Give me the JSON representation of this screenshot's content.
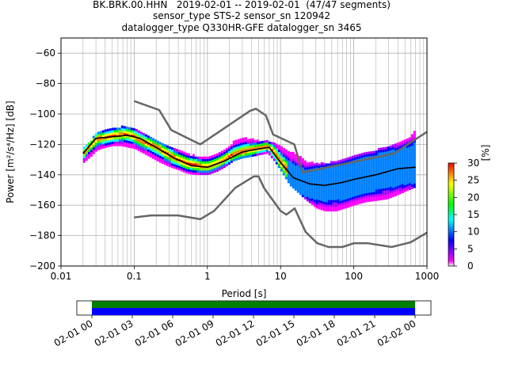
{
  "title_lines": [
    "BK.BRK.00.HHN   2019-02-01 -- 2019-02-01  (47/47 segments)",
    "sensor_type STS-2 sensor_sn 120942",
    "datalogger_type Q330HR-GFE datalogger_sn 3465"
  ],
  "chart_data": [
    {
      "type": "heatmap",
      "xlabel": "Period [s]",
      "ylabel": "Power [m²/s⁴/Hz] [dB]",
      "xscale": "log",
      "xlim": [
        0.01,
        1000
      ],
      "ylim": [
        -200,
        -50
      ],
      "xticks": [
        0.01,
        0.1,
        1,
        10,
        100,
        1000
      ],
      "xtick_labels": [
        "0.01",
        "0.1",
        "1",
        "10",
        "100",
        "1000"
      ],
      "yticks": [
        -200,
        -180,
        -160,
        -140,
        -120,
        -100,
        -80,
        -60
      ],
      "ytick_labels": [
        "−200",
        "−180",
        "−160",
        "−140",
        "−120",
        "−100",
        "−80",
        "−60"
      ],
      "grid": true,
      "colorbar": {
        "label": "[%]",
        "range": [
          0,
          30
        ],
        "ticks": [
          0,
          5,
          10,
          15,
          20,
          25,
          30
        ],
        "tick_labels": [
          "0",
          "5",
          "10",
          "15",
          "20",
          "25",
          "30"
        ],
        "colors": [
          "#ffffff",
          "#ff00ff",
          "#0000ff",
          "#00ffff",
          "#00ff00",
          "#ffff00",
          "#ff0000"
        ]
      },
      "series": [
        {
          "role": "mean",
          "color": "#000000",
          "x": [
            0.02,
            0.03,
            0.05,
            0.08,
            0.12,
            0.2,
            0.35,
            0.6,
            1.0,
            1.7,
            3.0,
            5.0,
            7.0,
            10,
            15,
            25,
            40,
            70,
            100,
            200,
            400,
            700
          ],
          "y": [
            -126,
            -116,
            -115,
            -114,
            -116,
            -122,
            -129,
            -134,
            -135,
            -131,
            -125,
            -123,
            -122,
            -132,
            -142,
            -146,
            -147,
            -145,
            -143,
            -140,
            -136,
            -135
          ]
        },
        {
          "role": "nhnm",
          "color": "#666666",
          "x": [
            0.1,
            0.22,
            0.32,
            0.8,
            3.8,
            4.6,
            6.3,
            7.9,
            15.4,
            20,
            354.8,
            1000
          ],
          "y": [
            -91.5,
            -97.4,
            -110.5,
            -120,
            -98,
            -96.5,
            -101,
            -113.5,
            -120,
            -138.5,
            -126,
            -111.7
          ]
        },
        {
          "role": "nlnm",
          "color": "#666666",
          "x": [
            0.1,
            0.17,
            0.4,
            0.8,
            1.24,
            2.4,
            4.3,
            5.0,
            6.0,
            10.0,
            12.0,
            15.6,
            21.9,
            31.6,
            45,
            70,
            101,
            154,
            328,
            600,
            1000
          ],
          "y": [
            -168,
            -166.7,
            -166.7,
            -169.2,
            -163.7,
            -148.6,
            -141.1,
            -141.1,
            -149,
            -163.8,
            -166.2,
            -162.1,
            -177.5,
            -185,
            -187.5,
            -187.5,
            -185,
            -185,
            -187.5,
            -184.4,
            -178
          ]
        }
      ],
      "density": [
        {
          "x": 0.02,
          "lo": -132,
          "hi": -122,
          "mode": -126
        },
        {
          "x": 0.025,
          "lo": -128,
          "hi": -118,
          "mode": -121
        },
        {
          "x": 0.03,
          "lo": -124,
          "hi": -112,
          "mode": -117
        },
        {
          "x": 0.04,
          "lo": -122,
          "hi": -111,
          "mode": -116
        },
        {
          "x": 0.05,
          "lo": -121,
          "hi": -110,
          "mode": -115
        },
        {
          "x": 0.065,
          "lo": -121,
          "hi": -109,
          "mode": -114
        },
        {
          "x": 0.08,
          "lo": -122,
          "hi": -110,
          "mode": -114
        },
        {
          "x": 0.1,
          "lo": -123,
          "hi": -111,
          "mode": -116
        },
        {
          "x": 0.13,
          "lo": -126,
          "hi": -114,
          "mode": -119
        },
        {
          "x": 0.17,
          "lo": -129,
          "hi": -117,
          "mode": -121
        },
        {
          "x": 0.22,
          "lo": -132,
          "hi": -119,
          "mode": -124
        },
        {
          "x": 0.3,
          "lo": -135,
          "hi": -122,
          "mode": -128
        },
        {
          "x": 0.4,
          "lo": -137,
          "hi": -125,
          "mode": -131
        },
        {
          "x": 0.5,
          "lo": -139,
          "hi": -127,
          "mode": -133
        },
        {
          "x": 0.65,
          "lo": -140,
          "hi": -128,
          "mode": -134
        },
        {
          "x": 0.8,
          "lo": -140,
          "hi": -129,
          "mode": -135
        },
        {
          "x": 1.0,
          "lo": -140,
          "hi": -129,
          "mode": -135
        },
        {
          "x": 1.3,
          "lo": -138,
          "hi": -127,
          "mode": -133
        },
        {
          "x": 1.7,
          "lo": -135,
          "hi": -124,
          "mode": -130
        },
        {
          "x": 2.2,
          "lo": -131,
          "hi": -119,
          "mode": -127
        },
        {
          "x": 3.0,
          "lo": -129,
          "hi": -116,
          "mode": -125
        },
        {
          "x": 4.0,
          "lo": -128,
          "hi": -117,
          "mode": -124
        },
        {
          "x": 5.0,
          "lo": -127,
          "hi": -118,
          "mode": -123
        },
        {
          "x": 6.5,
          "lo": -126,
          "hi": -118,
          "mode": -122
        },
        {
          "x": 8.0,
          "lo": -131,
          "hi": -119,
          "mode": -126
        },
        {
          "x": 10,
          "lo": -138,
          "hi": -122,
          "mode": -133
        },
        {
          "x": 13,
          "lo": -147,
          "hi": -125,
          "mode": -140
        },
        {
          "x": 17,
          "lo": -152,
          "hi": -128,
          "mode": -144
        },
        {
          "x": 22,
          "lo": -157,
          "hi": -132,
          "mode": -146
        },
        {
          "x": 30,
          "lo": -162,
          "hi": -133,
          "mode": -147
        },
        {
          "x": 40,
          "lo": -164,
          "hi": -133,
          "mode": -147
        },
        {
          "x": 55,
          "lo": -164,
          "hi": -132,
          "mode": -146
        },
        {
          "x": 75,
          "lo": -162,
          "hi": -130,
          "mode": -145
        },
        {
          "x": 100,
          "lo": -160,
          "hi": -128,
          "mode": -143
        },
        {
          "x": 140,
          "lo": -158,
          "hi": -126,
          "mode": -141
        },
        {
          "x": 200,
          "lo": -157,
          "hi": -124,
          "mode": -139
        },
        {
          "x": 280,
          "lo": -156,
          "hi": -122,
          "mode": -137
        },
        {
          "x": 400,
          "lo": -153,
          "hi": -120,
          "mode": -136
        },
        {
          "x": 550,
          "lo": -150,
          "hi": -116,
          "mode": -134
        },
        {
          "x": 700,
          "lo": -148,
          "hi": -110,
          "mode": -133
        }
      ]
    },
    {
      "type": "timeline",
      "xlim": [
        "2019-02-01 00:00",
        "2019-02-02 00:00"
      ],
      "xtick_labels": [
        "02-01 00",
        "02-01 03",
        "02-01 06",
        "02-01 09",
        "02-01 12",
        "02-01 15",
        "02-01 18",
        "02-01 21",
        "02-02 00"
      ],
      "rows": [
        {
          "color": "#008000",
          "start": "02-01 00",
          "end": "02-02 00"
        },
        {
          "color": "#0000ff",
          "start": "02-01 00",
          "end": "02-02 00"
        }
      ]
    }
  ]
}
